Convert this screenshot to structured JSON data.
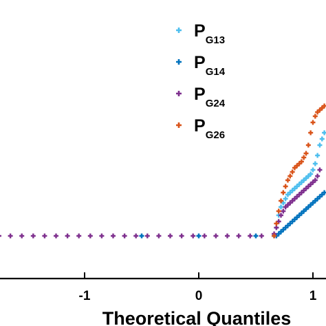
{
  "chart_data": {
    "type": "scatter",
    "marker": "plus",
    "title": "",
    "xlabel": "Theoretical Quantiles",
    "ylabel": "",
    "xlim": [
      -1.75,
      1.12
    ],
    "ylim": [
      0,
      1
    ],
    "xticks": [
      -1,
      0,
      1
    ],
    "xtick_labels": [
      "-1",
      "0",
      "1"
    ],
    "grid": false,
    "legend_position": "top-right",
    "series": [
      {
        "name": "P_G13",
        "label_main": "P",
        "label_sub": "G13",
        "color": "#4DBEEE",
        "x": [
          -0.5,
          0.0,
          0.5,
          0.66,
          0.68,
          0.7,
          0.72,
          0.74,
          0.76,
          0.78,
          0.8,
          0.82,
          0.84,
          0.86,
          0.88,
          0.9,
          0.92,
          0.94,
          0.96,
          0.98,
          1.0,
          1.02,
          1.04,
          1.06,
          1.08,
          1.1
        ],
        "y": [
          0.02,
          0.02,
          0.02,
          0.02,
          0.06,
          0.12,
          0.16,
          0.18,
          0.2,
          0.22,
          0.23,
          0.24,
          0.25,
          0.26,
          0.27,
          0.28,
          0.29,
          0.3,
          0.31,
          0.32,
          0.34,
          0.37,
          0.41,
          0.46,
          0.49,
          0.52
        ]
      },
      {
        "name": "P_G14",
        "label_main": "P",
        "label_sub": "G14",
        "color": "#0072BD",
        "x": [
          -0.5,
          0.0,
          0.5,
          0.66,
          0.68,
          0.7,
          0.72,
          0.74,
          0.76,
          0.78,
          0.8,
          0.82,
          0.84,
          0.86,
          0.88,
          0.9,
          0.92,
          0.94,
          0.96,
          0.98,
          1.0,
          1.02,
          1.04,
          1.06,
          1.08,
          1.1
        ],
        "y": [
          0.02,
          0.02,
          0.02,
          0.02,
          0.02,
          0.03,
          0.04,
          0.05,
          0.06,
          0.07,
          0.08,
          0.09,
          0.1,
          0.11,
          0.12,
          0.13,
          0.14,
          0.15,
          0.16,
          0.17,
          0.18,
          0.19,
          0.2,
          0.21,
          0.22,
          0.23
        ]
      },
      {
        "name": "P_G24",
        "label_main": "P",
        "label_sub": "G24",
        "color": "#7E2F8E",
        "x": [
          -1.75,
          -1.65,
          -1.55,
          -1.45,
          -1.35,
          -1.25,
          -1.15,
          -1.05,
          -0.95,
          -0.85,
          -0.75,
          -0.65,
          -0.55,
          -0.45,
          -0.35,
          -0.25,
          -0.15,
          -0.05,
          0.05,
          0.15,
          0.25,
          0.35,
          0.45,
          0.55,
          0.66,
          0.68,
          0.7,
          0.72,
          0.74,
          0.76,
          0.78,
          0.8,
          0.82,
          0.84,
          0.86,
          0.88,
          0.9,
          0.92,
          0.94,
          0.96,
          0.98,
          1.0,
          1.02,
          1.04,
          1.06
        ],
        "y": [
          0.02,
          0.02,
          0.02,
          0.02,
          0.02,
          0.02,
          0.02,
          0.02,
          0.02,
          0.02,
          0.02,
          0.02,
          0.02,
          0.02,
          0.02,
          0.02,
          0.02,
          0.02,
          0.02,
          0.02,
          0.02,
          0.02,
          0.02,
          0.02,
          0.03,
          0.06,
          0.09,
          0.12,
          0.14,
          0.16,
          0.17,
          0.18,
          0.19,
          0.2,
          0.21,
          0.22,
          0.23,
          0.24,
          0.25,
          0.26,
          0.27,
          0.28,
          0.29,
          0.31,
          0.34
        ]
      },
      {
        "name": "P_G26",
        "label_main": "P",
        "label_sub": "G26",
        "color": "#D95319",
        "x": [
          0.66,
          0.68,
          0.7,
          0.72,
          0.74,
          0.76,
          0.78,
          0.8,
          0.82,
          0.84,
          0.86,
          0.88,
          0.9,
          0.92,
          0.94,
          0.96,
          0.98,
          1.0,
          1.02,
          1.04,
          1.06,
          1.08,
          1.1
        ],
        "y": [
          0.02,
          0.08,
          0.14,
          0.19,
          0.23,
          0.26,
          0.29,
          0.31,
          0.33,
          0.35,
          0.36,
          0.37,
          0.38,
          0.4,
          0.42,
          0.46,
          0.52,
          0.57,
          0.6,
          0.62,
          0.63,
          0.64,
          0.65
        ]
      }
    ]
  }
}
